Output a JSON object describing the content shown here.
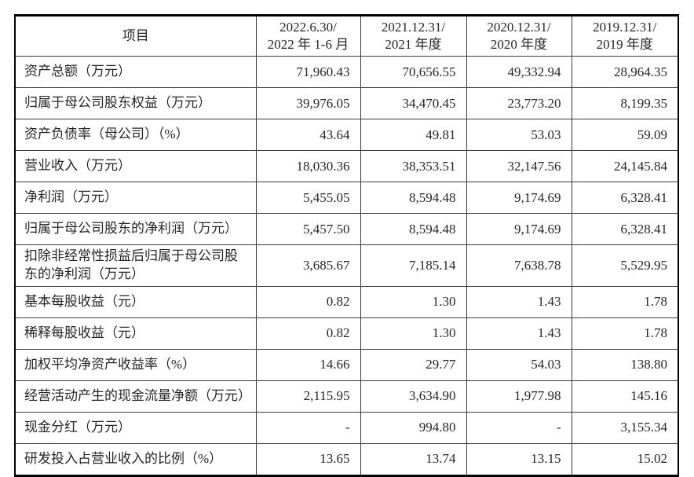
{
  "colors": {
    "background": "#ffffff",
    "outer_border": "#000000",
    "grid_line": "#3d3d3d",
    "text": "#262626"
  },
  "table": {
    "header": [
      {
        "line1": "项目",
        "line2": ""
      },
      {
        "line1": "2022.6.30/",
        "line2": "2022 年 1-6 月"
      },
      {
        "line1": "2021.12.31/",
        "line2": "2021 年度"
      },
      {
        "line1": "2020.12.31/",
        "line2": "2020 年度"
      },
      {
        "line1": "2019.12.31/",
        "line2": "2019 年度"
      }
    ],
    "rows": [
      {
        "label": "资产总额（万元）",
        "values": [
          "71,960.43",
          "70,656.55",
          "49,332.94",
          "28,964.35"
        ]
      },
      {
        "label": "归属于母公司股东权益（万元）",
        "values": [
          "39,976.05",
          "34,470.45",
          "23,773.20",
          "8,199.35"
        ]
      },
      {
        "label": "资产负债率（母公司）（%）",
        "values": [
          "43.64",
          "49.81",
          "53.03",
          "59.09"
        ]
      },
      {
        "label": "营业收入（万元）",
        "values": [
          "18,030.36",
          "38,353.51",
          "32,147.56",
          "24,145.84"
        ]
      },
      {
        "label": "净利润（万元）",
        "values": [
          "5,455.05",
          "8,594.48",
          "9,174.69",
          "6,328.41"
        ]
      },
      {
        "label": "归属于母公司股东的净利润（万元）",
        "values": [
          "5,457.50",
          "8,594.48",
          "9,174.69",
          "6,328.41"
        ]
      },
      {
        "label": "扣除非经常性损益后归属于母公司股东的净利润（万元）",
        "values": [
          "3,685.67",
          "7,185.14",
          "7,638.78",
          "5,529.95"
        ]
      },
      {
        "label": "基本每股收益（元）",
        "values": [
          "0.82",
          "1.30",
          "1.43",
          "1.78"
        ]
      },
      {
        "label": "稀释每股收益（元）",
        "values": [
          "0.82",
          "1.30",
          "1.43",
          "1.78"
        ]
      },
      {
        "label": "加权平均净资产收益率（%）",
        "values": [
          "14.66",
          "29.77",
          "54.03",
          "138.80"
        ]
      },
      {
        "label": "经营活动产生的现金流量净额（万元）",
        "values": [
          "2,115.95",
          "3,634.90",
          "1,977.98",
          "145.16"
        ]
      },
      {
        "label": "现金分红（万元）",
        "values": [
          "-",
          "994.80",
          "-",
          "3,155.34"
        ]
      },
      {
        "label": "研发投入占营业收入的比例（%）",
        "values": [
          "13.65",
          "13.74",
          "13.15",
          "15.02"
        ]
      }
    ]
  }
}
